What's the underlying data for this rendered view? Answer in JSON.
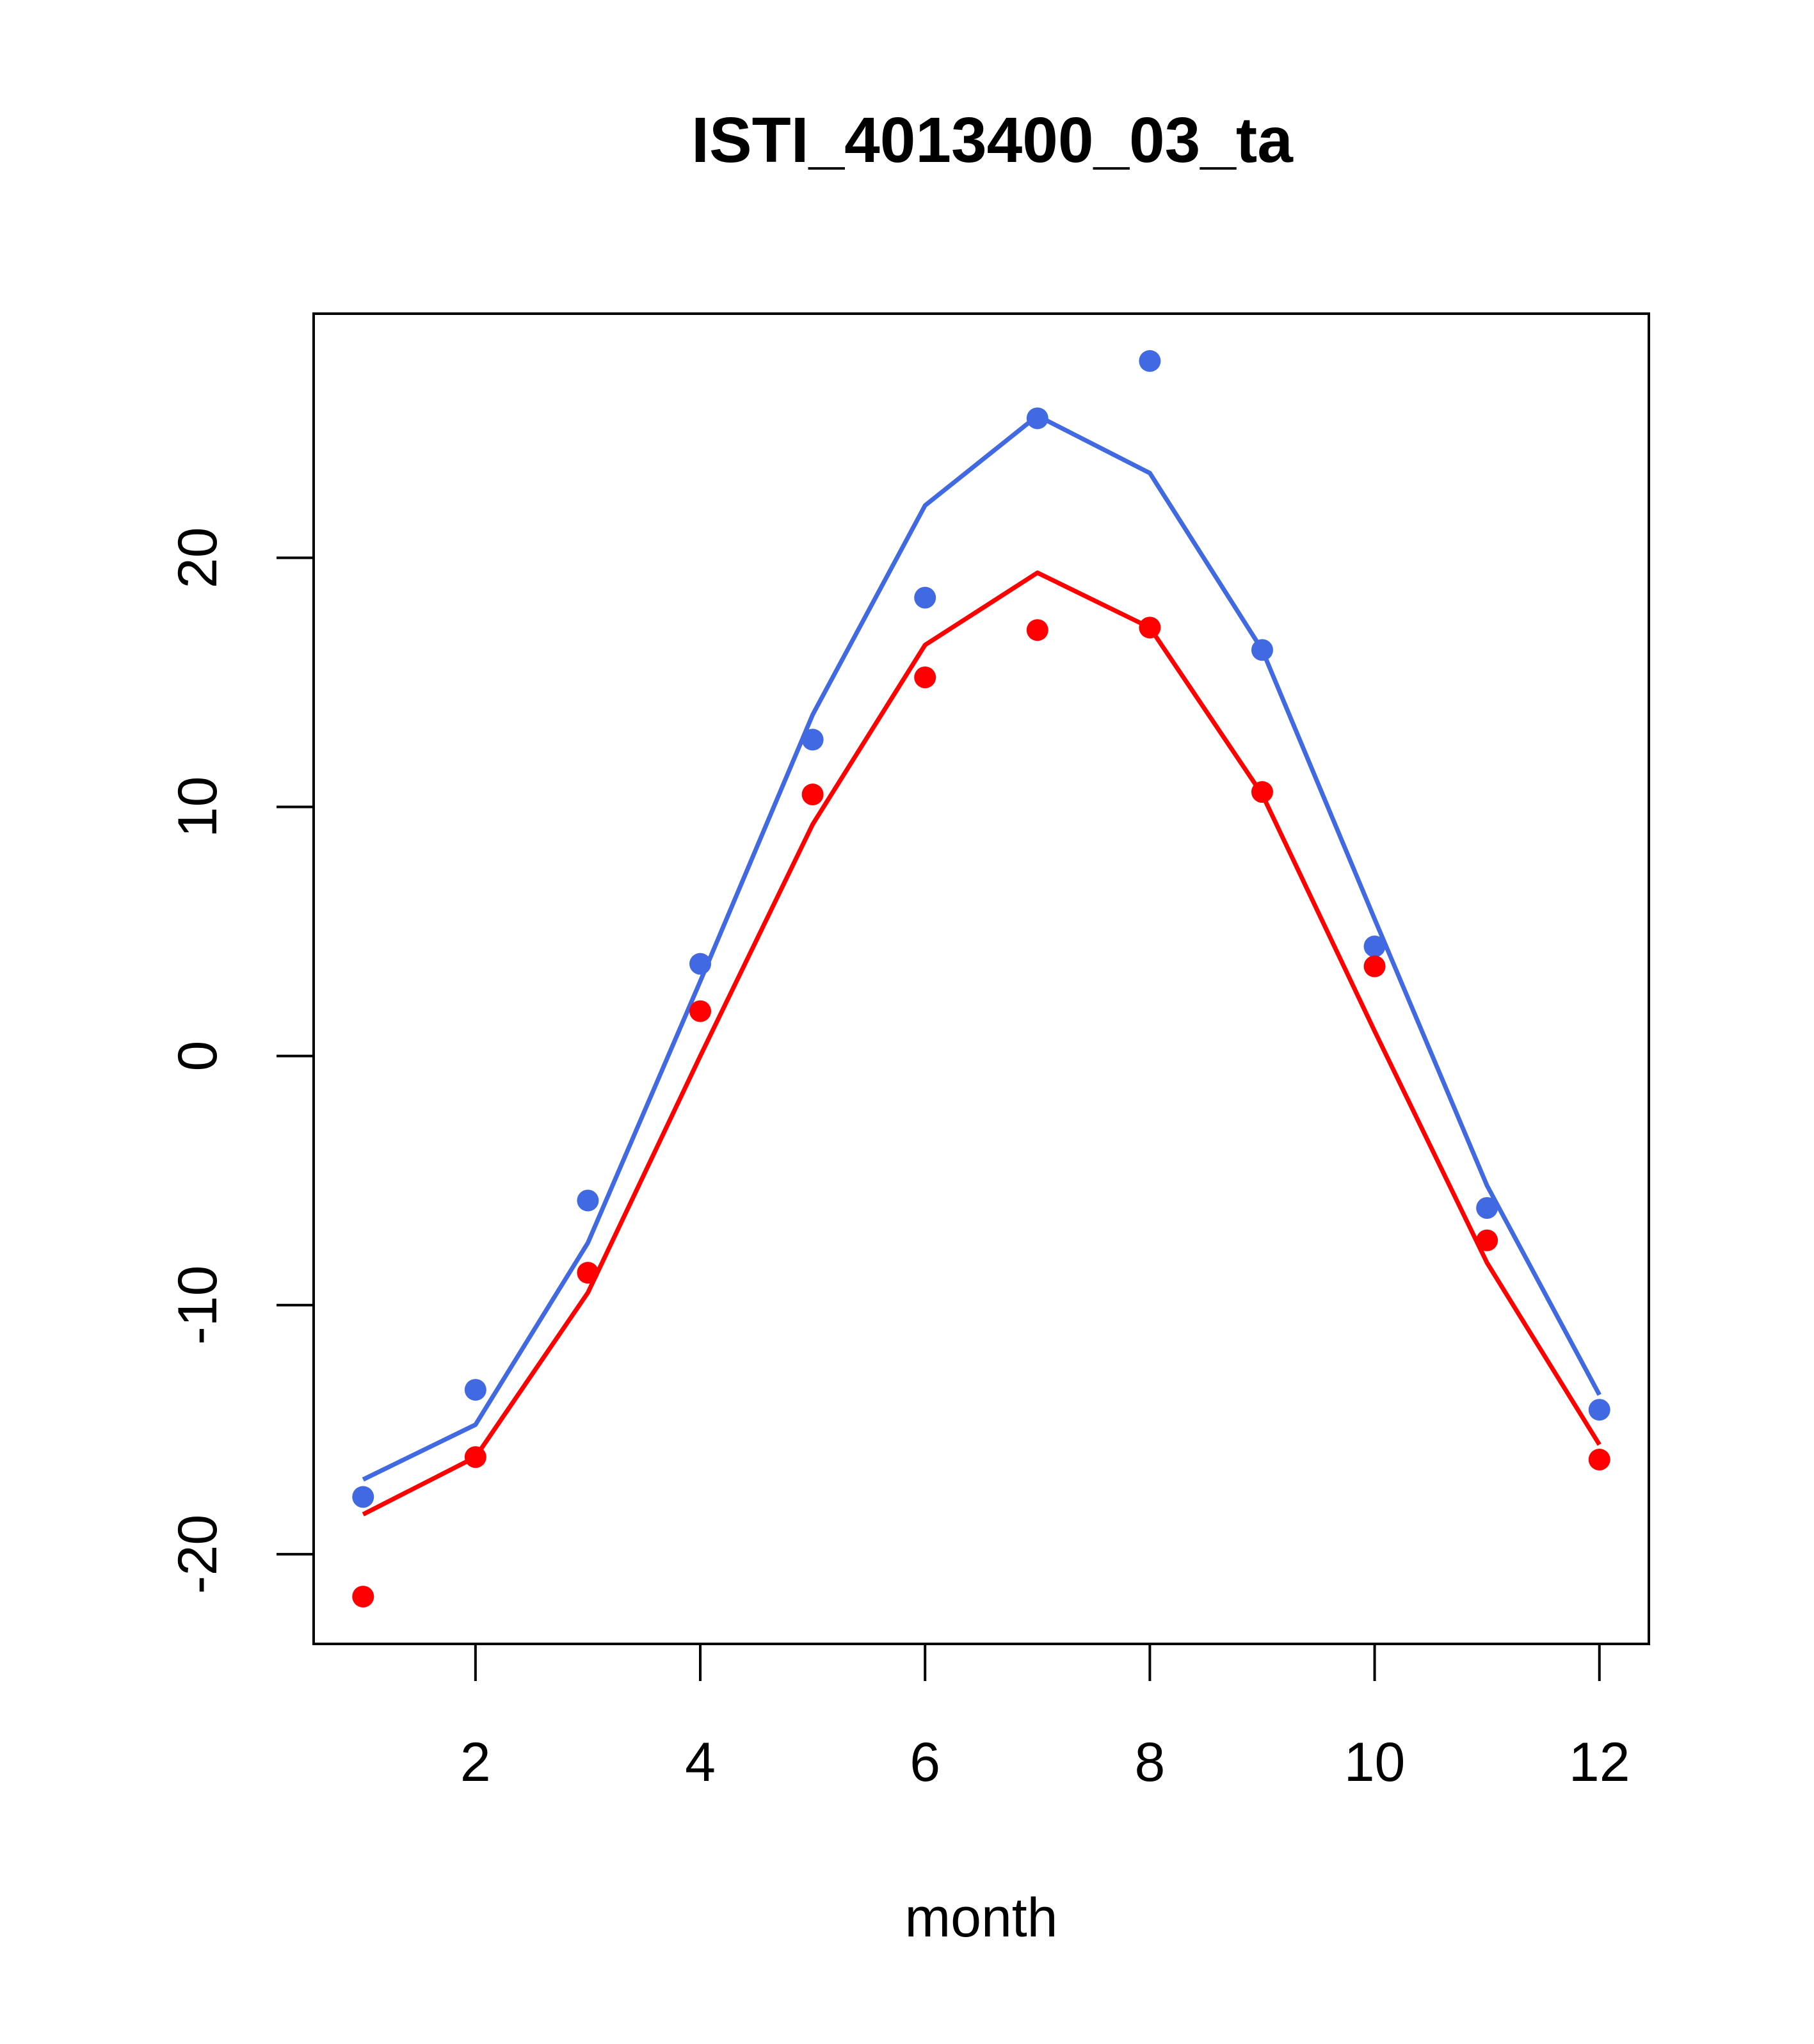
{
  "chart_data": {
    "type": "line",
    "title": "ISTI_4013400_03_ta",
    "xlabel": "month",
    "ylabel": "",
    "xlim": [
      0.56,
      12.44
    ],
    "ylim": [
      -23.6,
      29.8
    ],
    "xticks": [
      2,
      4,
      6,
      8,
      10,
      12
    ],
    "xtick_labels": [
      "2",
      "4",
      "6",
      "8",
      "10",
      "12"
    ],
    "yticks": [
      -20,
      -10,
      0,
      10,
      20
    ],
    "ytick_labels": [
      "-20",
      "-10",
      "0",
      "10",
      "20"
    ],
    "grid": false,
    "x": [
      1,
      2,
      3,
      4,
      5,
      6,
      7,
      8,
      9,
      10,
      11,
      12
    ],
    "series": [
      {
        "color": "#4169E1",
        "line": [
          -17.0,
          -14.8,
          -7.5,
          3.0,
          13.7,
          22.1,
          25.7,
          23.4,
          16.3,
          5.5,
          -5.2,
          -13.6
        ],
        "points": [
          -17.7,
          -13.4,
          -5.8,
          3.7,
          12.7,
          18.4,
          25.6,
          27.9,
          16.3,
          4.4,
          -6.1,
          -14.2
        ]
      },
      {
        "color": "#FF0000",
        "line": [
          -18.4,
          -16.1,
          -9.5,
          0.0,
          9.3,
          16.5,
          19.4,
          17.2,
          10.5,
          1.0,
          -8.3,
          -15.6
        ],
        "points": [
          -21.7,
          -16.1,
          -8.7,
          1.8,
          10.5,
          15.2,
          17.1,
          17.2,
          10.6,
          3.6,
          -7.4,
          -16.2
        ]
      }
    ]
  }
}
